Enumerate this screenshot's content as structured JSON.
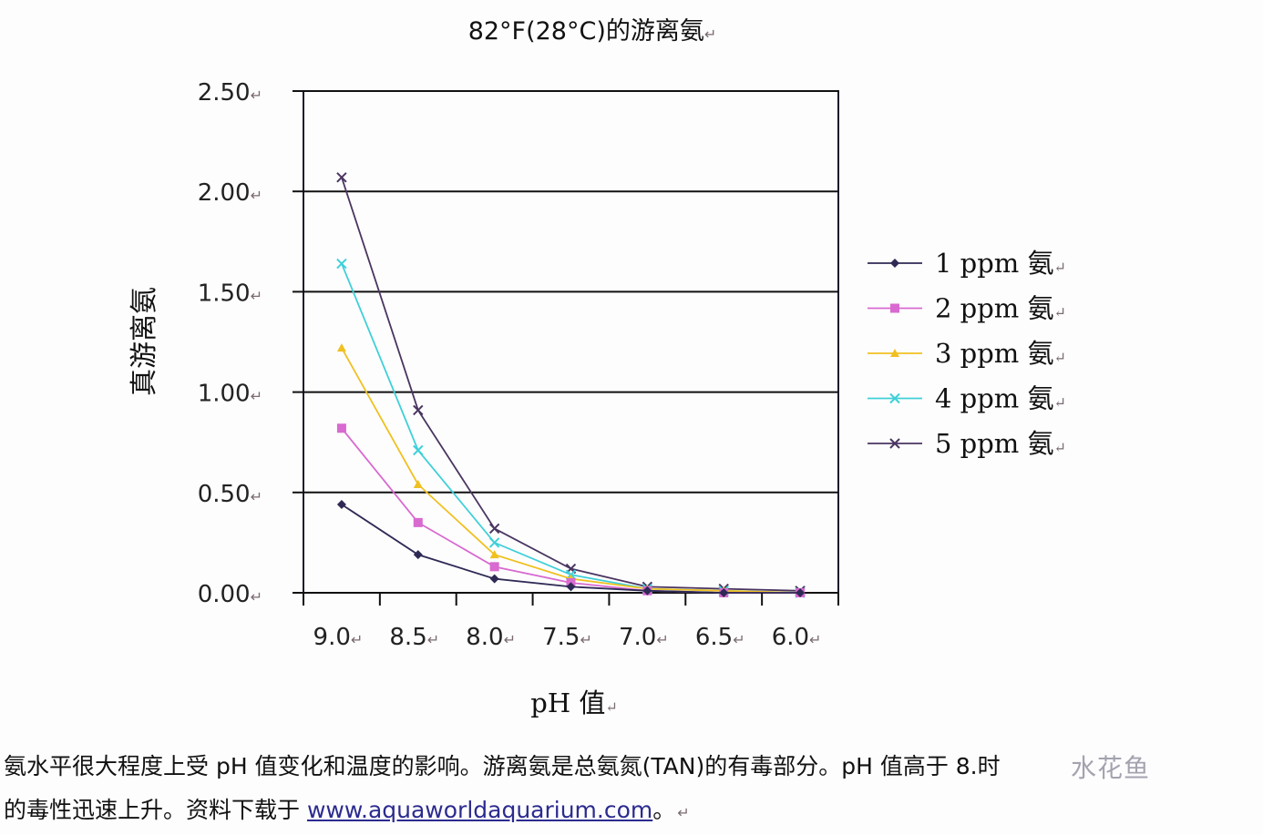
{
  "chart_data": {
    "type": "line",
    "title": "82°F(28°C)的游离氨",
    "xlabel": "pH 值",
    "ylabel": "真游离氨",
    "categories": [
      "9.0",
      "8.5",
      "8.0",
      "7.5",
      "7.0",
      "6.5",
      "6.0"
    ],
    "ylim": [
      0,
      2.5
    ],
    "yticks": [
      "0.00",
      "0.50",
      "1.00",
      "1.50",
      "2.00",
      "2.50"
    ],
    "grid": true,
    "legend_position": "right",
    "series": [
      {
        "name": "1 ppm 氨",
        "color": "#2e2a55",
        "marker": "diamond",
        "values": [
          0.44,
          0.19,
          0.07,
          0.03,
          0.01,
          0.0,
          0.0
        ]
      },
      {
        "name": "2 ppm 氨",
        "color": "#d86ad0",
        "marker": "square",
        "values": [
          0.82,
          0.35,
          0.13,
          0.05,
          0.01,
          0.0,
          0.0
        ]
      },
      {
        "name": "3 ppm 氨",
        "color": "#f0c020",
        "marker": "triangle",
        "values": [
          1.22,
          0.54,
          0.19,
          0.07,
          0.02,
          0.01,
          0.0
        ]
      },
      {
        "name": "4 ppm 氨",
        "color": "#3fd0d8",
        "marker": "x",
        "values": [
          1.64,
          0.71,
          0.25,
          0.09,
          0.02,
          0.01,
          0.0
        ]
      },
      {
        "name": "5 ppm 氨",
        "color": "#4a3560",
        "marker": "x",
        "values": [
          2.07,
          0.91,
          0.32,
          0.12,
          0.03,
          0.02,
          0.01
        ]
      }
    ]
  },
  "caption": {
    "line1": "氨水平很大程度上受 pH 值变化和温度的影响。游离氨是总氨氮(TAN)的有毒部分。pH 值高于 8.",
    "line1_tail": "时",
    "line2_prefix": "的毒性迅速上升。资料下载于 ",
    "link": "www.aquaworldaquarium.com",
    "line2_suffix": "。"
  },
  "watermark": "水花鱼",
  "para_mark": "↵"
}
